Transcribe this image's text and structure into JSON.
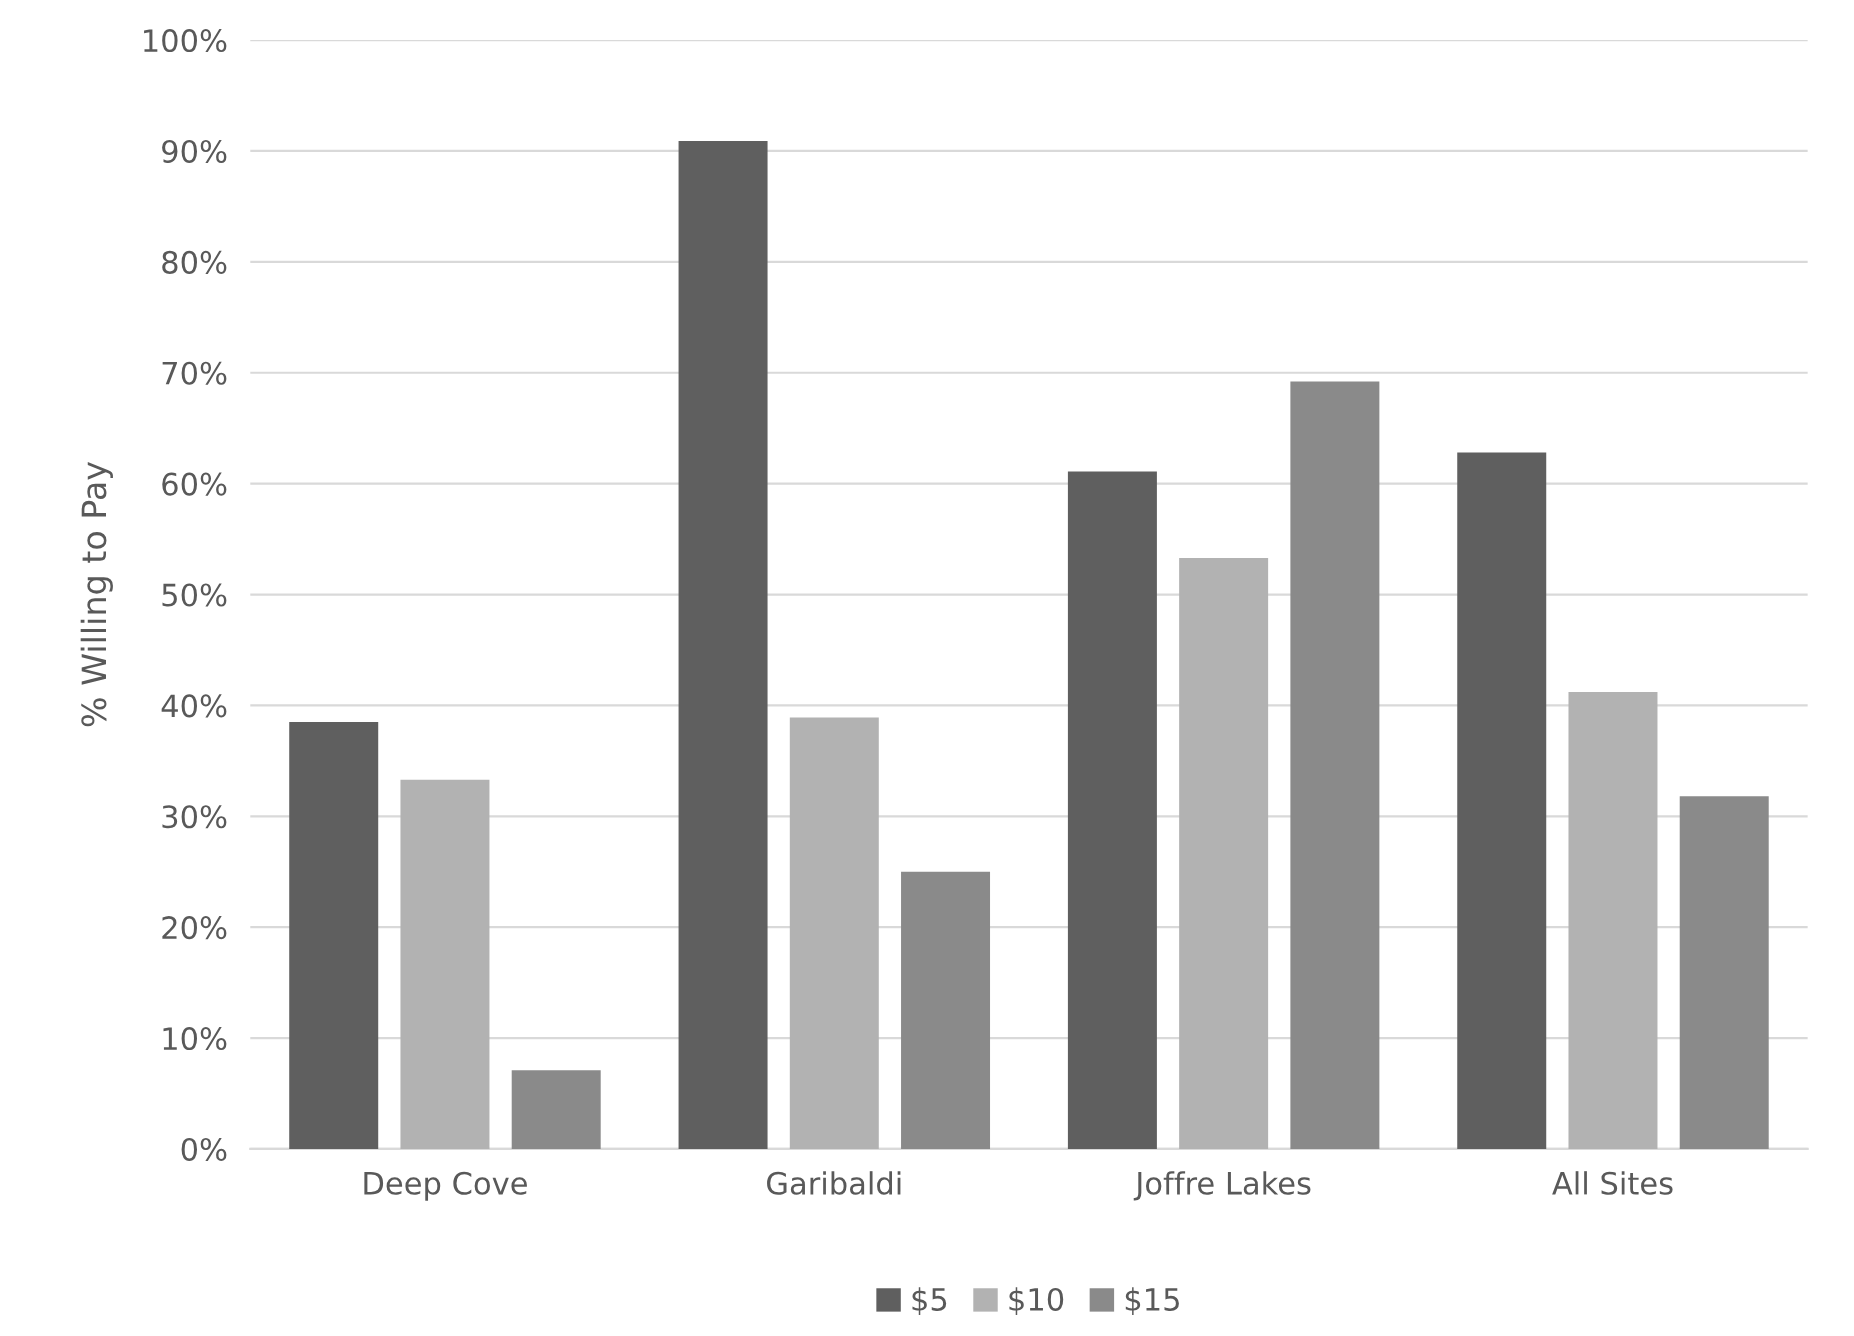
{
  "chart_data": {
    "type": "bar",
    "ylabel": "% Willing to Pay",
    "categories": [
      "Deep Cove",
      "Garibaldi",
      "Joffre Lakes",
      "All Sites"
    ],
    "series": [
      {
        "name": "$5",
        "color": "#5f5f5f",
        "values": [
          38.5,
          90.9,
          61.1,
          62.8
        ]
      },
      {
        "name": "$10",
        "color": "#b2b2b2",
        "values": [
          33.3,
          38.9,
          53.3,
          41.2
        ]
      },
      {
        "name": "$15",
        "color": "#8a8a8a",
        "values": [
          7.1,
          25.0,
          69.2,
          31.8
        ]
      }
    ],
    "ylim": [
      0,
      100
    ],
    "yticks": [
      {
        "value": 0,
        "label": "0%"
      },
      {
        "value": 10,
        "label": "10%"
      },
      {
        "value": 20,
        "label": "20%"
      },
      {
        "value": 30,
        "label": "30%"
      },
      {
        "value": 40,
        "label": "40%"
      },
      {
        "value": 50,
        "label": "50%"
      },
      {
        "value": 60,
        "label": "60%"
      },
      {
        "value": 70,
        "label": "70%"
      },
      {
        "value": 80,
        "label": "80%"
      },
      {
        "value": 90,
        "label": "90%"
      },
      {
        "value": 100,
        "label": "100%"
      }
    ],
    "grid": "y",
    "legend": "bottom"
  }
}
